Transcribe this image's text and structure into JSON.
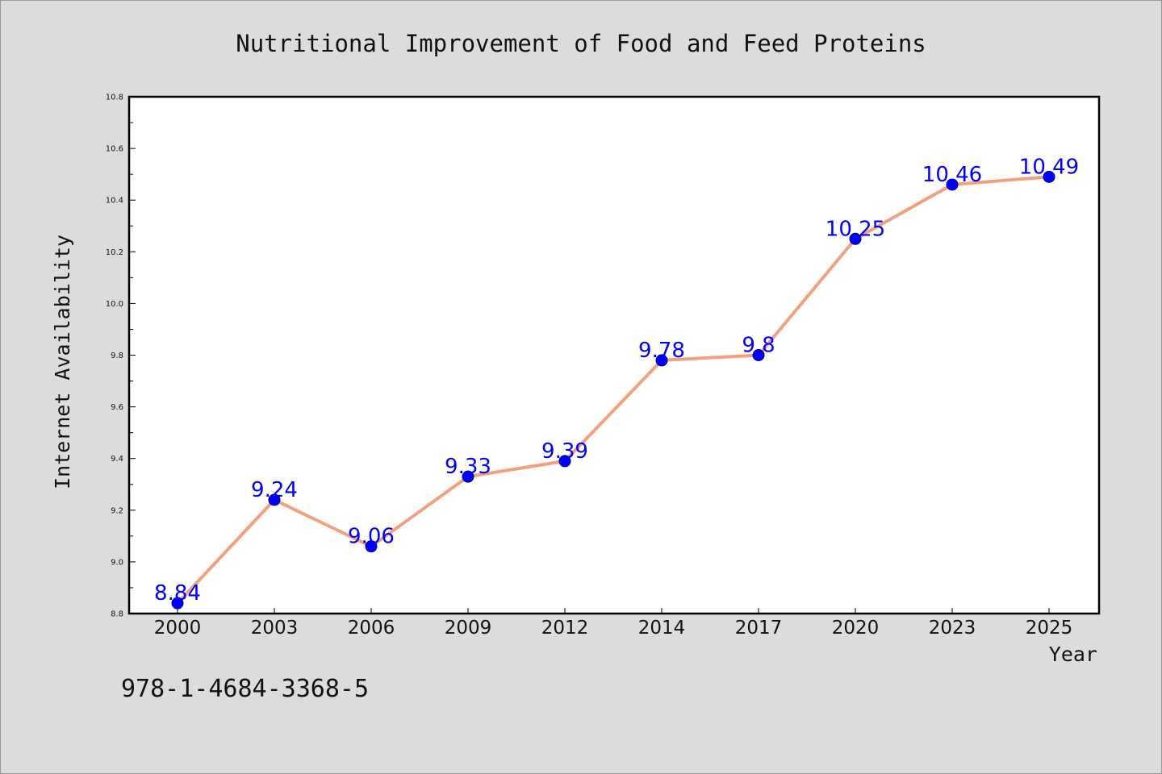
{
  "chart_data": {
    "type": "line",
    "title": "Nutritional Improvement of Food and Feed Proteins",
    "xlabel": "Year",
    "ylabel": "Internet Availability",
    "categories": [
      "2000",
      "2003",
      "2006",
      "2009",
      "2012",
      "2014",
      "2017",
      "2020",
      "2023",
      "2025"
    ],
    "series": [
      {
        "values": [
          8.84,
          9.24,
          9.06,
          9.33,
          9.39,
          9.78,
          9.8,
          10.25,
          10.46,
          10.49
        ],
        "data_labels": [
          "8.84",
          "9.24",
          "9.06",
          "9.33",
          "9.39",
          "9.78",
          "9.8",
          "10.25",
          "10.46",
          "10.49"
        ]
      }
    ],
    "ylim": [
      8.8,
      10.8
    ],
    "y_ticks": [
      "8.8",
      "9.0",
      "9.2",
      "9.4",
      "9.6",
      "9.8",
      "10.0",
      "10.2",
      "10.4",
      "10.6",
      "10.8"
    ],
    "grid": false,
    "legend": "none",
    "colors": {
      "line": "#f4a07e",
      "marker_fill": "#0000ff",
      "marker_edge": "#000080",
      "data_label": "#0000ff",
      "plot_background": "#ffffff",
      "figure_background": "#dcdcdc"
    }
  },
  "footnote": "978-1-4684-3368-5"
}
